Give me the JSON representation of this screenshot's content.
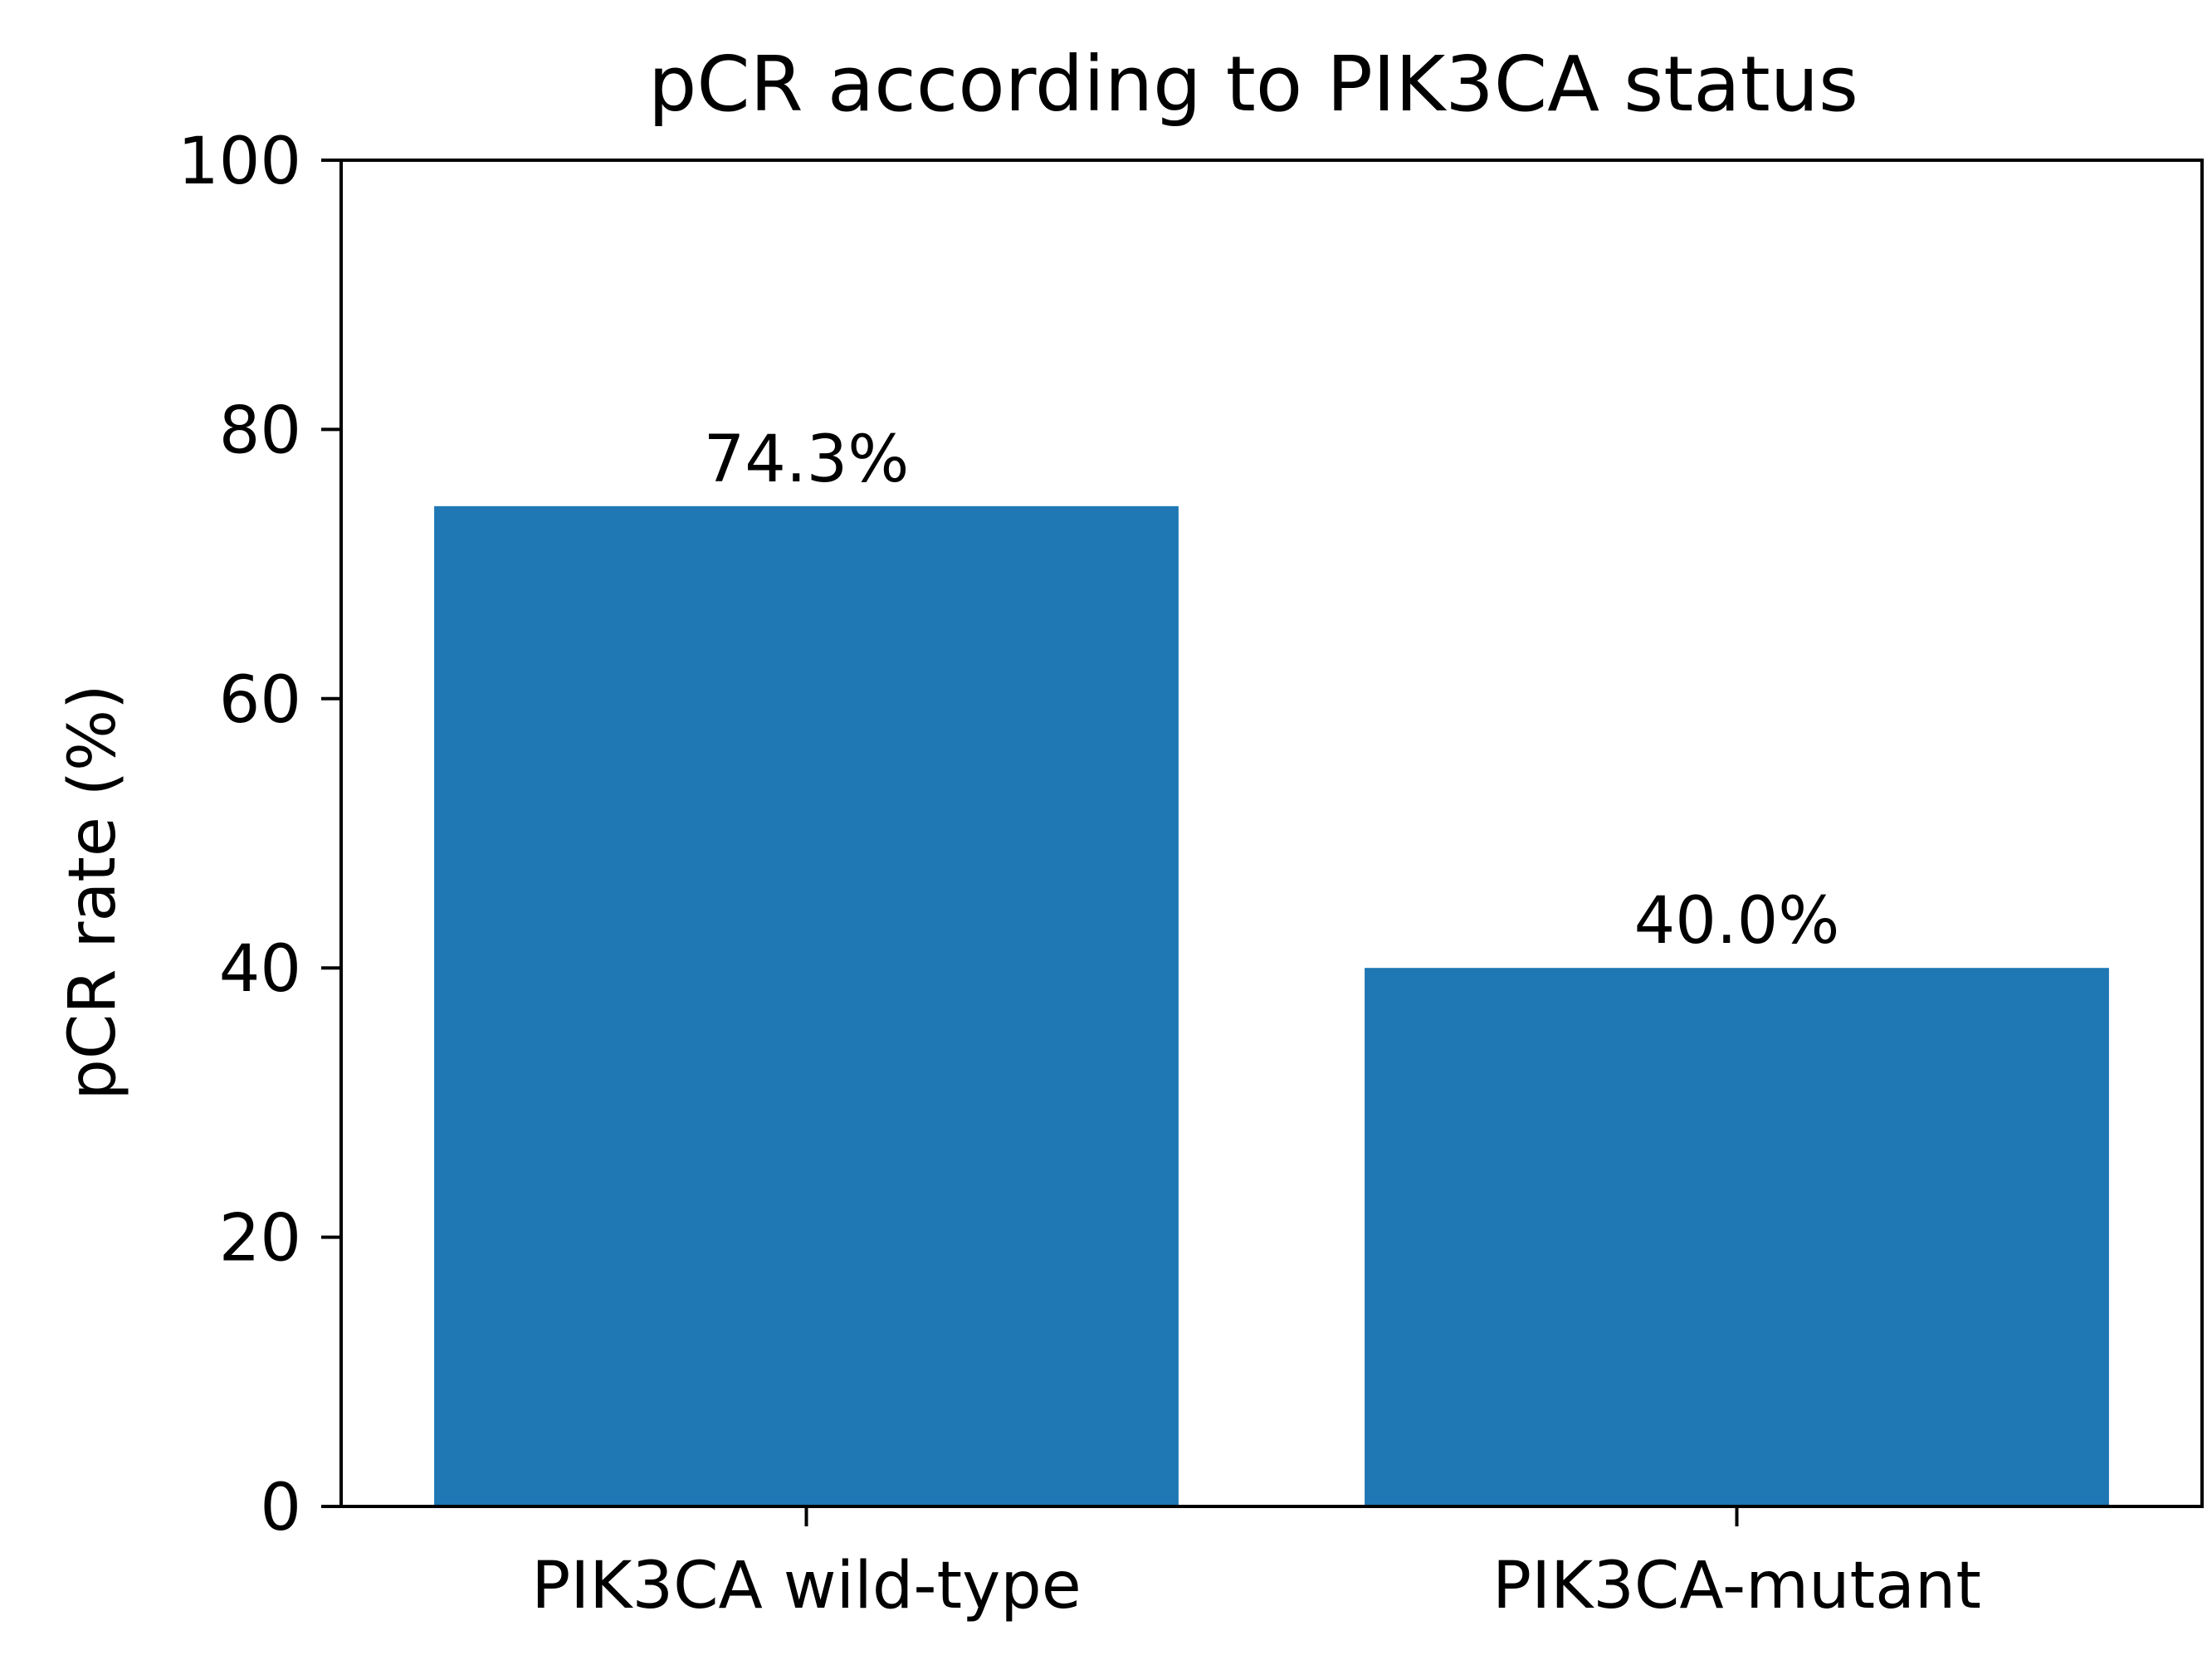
{
  "chart_data": {
    "type": "bar",
    "title": "pCR according to PIK3CA status",
    "xlabel": "",
    "ylabel": "pCR rate (%)",
    "categories": [
      "PIK3CA wild-type",
      "PIK3CA-mutant"
    ],
    "values": [
      74.3,
      40.0
    ],
    "value_labels": [
      "74.3%",
      "40.0%"
    ],
    "ylim": [
      0,
      100
    ],
    "yticks": [
      0,
      20,
      40,
      60,
      80,
      100
    ],
    "ytick_labels": [
      "0",
      "20",
      "40",
      "60",
      "80",
      "100"
    ],
    "grid": false,
    "legend": "none",
    "bar_color": "#1f77b4"
  }
}
